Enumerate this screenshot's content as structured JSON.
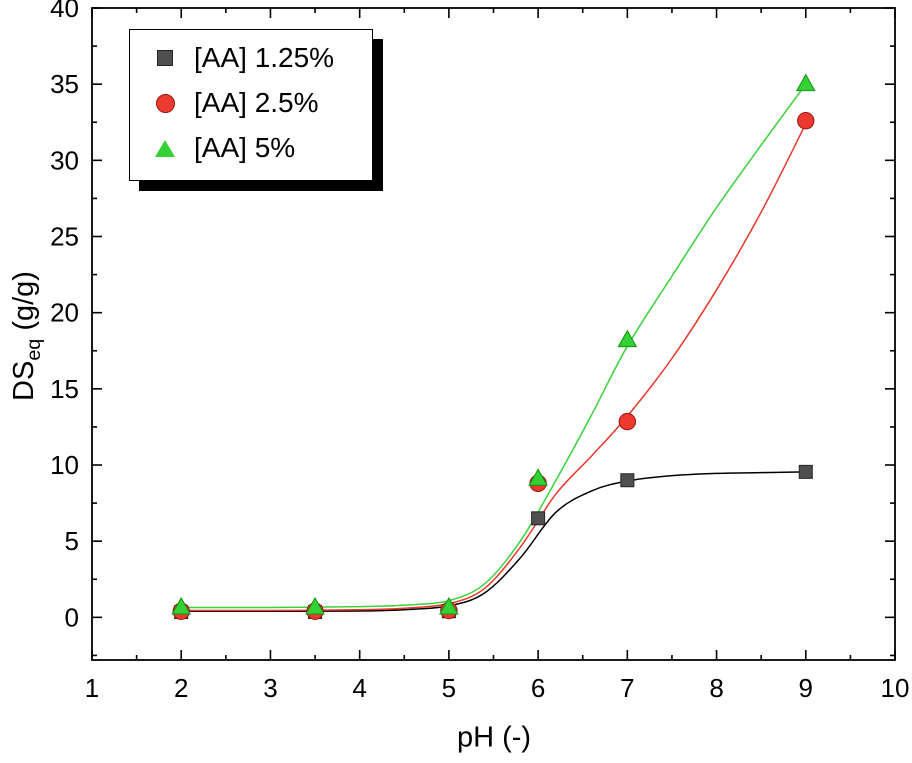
{
  "chart_data": {
    "type": "scatter",
    "title": "",
    "xlabel": "pH (-)",
    "ylabel": "DS_eq (g/g)",
    "ylabel_base": "DS",
    "ylabel_sub": "eq",
    "ylabel_rest": " (g/g)",
    "xlim": [
      1,
      10
    ],
    "ylim": [
      -2.8,
      40
    ],
    "x_major_ticks": [
      1,
      2,
      3,
      4,
      5,
      6,
      7,
      8,
      9,
      10
    ],
    "y_major_ticks": [
      0,
      5,
      10,
      15,
      20,
      25,
      30,
      35,
      40
    ],
    "x_minor_step": 0.5,
    "y_minor_step": 2.5,
    "grid": false,
    "legend_position": "top-left",
    "frame_color": "#000000",
    "series": [
      {
        "name": "[AA] 1.25%",
        "marker": "square",
        "marker_color": "#4f4f4f",
        "edge_color": "#262626",
        "line_color": "#000000",
        "points": {
          "x": [
            2,
            3.5,
            5,
            6,
            7,
            9
          ],
          "y": [
            0.35,
            0.35,
            0.4,
            6.5,
            9.0,
            9.55
          ]
        },
        "fit_curve": {
          "x": [
            2,
            3,
            4,
            4.5,
            5,
            5.4,
            5.8,
            6.2,
            6.6,
            7,
            7.5,
            8,
            8.5,
            9
          ],
          "y": [
            0.4,
            0.4,
            0.42,
            0.5,
            0.75,
            1.6,
            3.9,
            6.9,
            8.3,
            8.95,
            9.3,
            9.45,
            9.5,
            9.55
          ]
        }
      },
      {
        "name": "[AA] 2.5%",
        "marker": "circle",
        "marker_color": "#ed3a30",
        "edge_color": "#971711",
        "line_color": "#e8372c",
        "points": {
          "x": [
            2,
            3.5,
            5,
            6,
            7,
            9
          ],
          "y": [
            0.4,
            0.4,
            0.45,
            8.8,
            12.85,
            32.6
          ]
        },
        "fit_curve": {
          "x": [
            2,
            3,
            4,
            4.5,
            5,
            5.4,
            5.8,
            6.2,
            6.6,
            7,
            7.5,
            8,
            8.5,
            9
          ],
          "y": [
            0.45,
            0.45,
            0.5,
            0.6,
            0.9,
            1.9,
            4.6,
            8.1,
            10.6,
            13.2,
            17.0,
            21.5,
            26.6,
            32.4
          ]
        }
      },
      {
        "name": "[AA] 5%",
        "marker": "triangle",
        "marker_color": "#33d133",
        "edge_color": "#149114",
        "line_color": "#3bd13b",
        "points": {
          "x": [
            2,
            3.5,
            5,
            6,
            7,
            9
          ],
          "y": [
            0.65,
            0.65,
            0.65,
            9.1,
            18.2,
            35.0
          ]
        },
        "fit_curve": {
          "x": [
            2,
            3,
            4,
            4.5,
            5,
            5.4,
            5.8,
            6.2,
            6.6,
            7,
            7.5,
            8,
            8.5,
            9
          ],
          "y": [
            0.65,
            0.65,
            0.7,
            0.8,
            1.1,
            2.2,
            5.0,
            9.0,
            13.3,
            17.8,
            22.4,
            26.9,
            31.0,
            35.0
          ]
        }
      }
    ]
  }
}
